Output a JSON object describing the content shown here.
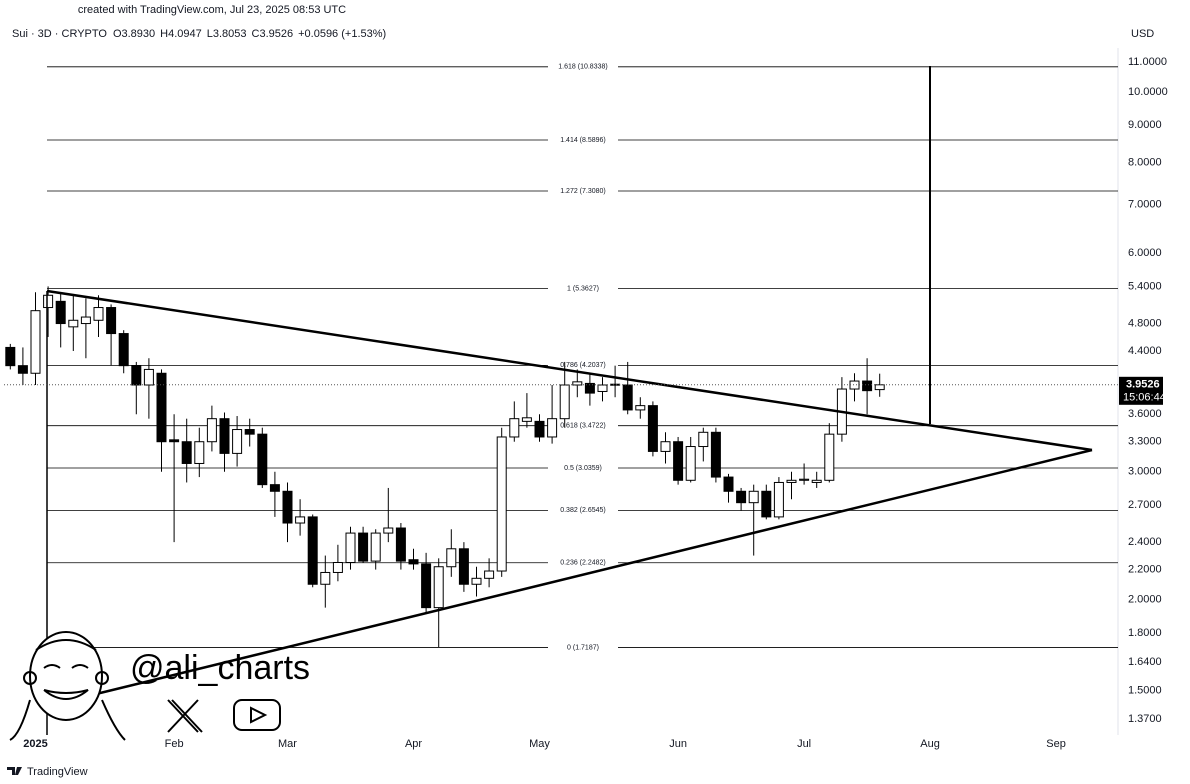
{
  "header": {
    "created": "created with TradingView.com, Jul 23, 2025 08:53 UTC",
    "symbol": "Sui · 3D · CRYPTO",
    "stats": [
      "O3.8930",
      "H4.0947",
      "L3.8053",
      "C3.9526",
      "+0.0596 (+1.53%)"
    ],
    "currency": "USD"
  },
  "watermark": {
    "handle": "@ali_charts"
  },
  "footer": {
    "brand": "TradingView"
  },
  "chart_data": {
    "type": "candlestick",
    "categories": [
      null,
      null,
      "2025",
      null,
      null,
      null,
      null,
      null,
      null,
      null,
      null,
      null,
      null,
      "Feb",
      null,
      null,
      null,
      null,
      null,
      null,
      null,
      null,
      "Mar",
      null,
      null,
      null,
      null,
      null,
      null,
      null,
      null,
      null,
      "Apr",
      null,
      null,
      null,
      null,
      null,
      null,
      null,
      null,
      null,
      "May",
      null,
      null,
      null,
      null,
      null,
      null,
      null,
      null,
      null,
      null,
      "Jun",
      null,
      null,
      null,
      null,
      null,
      null,
      null,
      null,
      null,
      "Jul",
      null,
      null,
      null,
      null,
      null,
      null,
      null,
      null,
      null,
      "Aug",
      null,
      null,
      null,
      null,
      null,
      null,
      null,
      null,
      null,
      "Sep",
      null,
      null,
      null,
      null
    ],
    "open": [
      4.45,
      4.2,
      4.1,
      5.05,
      5.15,
      4.75,
      4.8,
      4.85,
      5.05,
      4.65,
      4.2,
      3.95,
      4.1,
      3.32,
      3.3,
      3.08,
      3.3,
      3.55,
      3.18,
      3.43,
      3.38,
      2.88,
      2.82,
      2.55,
      2.6,
      2.1,
      2.18,
      2.25,
      2.47,
      2.26,
      2.47,
      2.51,
      2.27,
      2.24,
      1.95,
      2.22,
      2.35,
      2.1,
      2.14,
      2.19,
      3.35,
      3.52,
      3.52,
      3.35,
      3.55,
      3.95,
      3.97,
      3.87,
      3.95,
      3.95,
      3.65,
      3.7,
      3.2,
      3.3,
      2.92,
      3.25,
      3.4,
      2.95,
      2.82,
      2.72,
      2.82,
      2.6,
      2.9,
      2.92,
      2.9,
      2.92,
      3.38,
      3.9,
      4.0,
      3.893,
      null,
      null,
      null,
      null,
      null,
      null,
      null,
      null,
      null,
      null,
      null,
      null,
      null,
      null,
      null,
      null,
      null,
      null
    ],
    "high": [
      4.5,
      4.45,
      5.3,
      5.4,
      5.3,
      5.25,
      5.2,
      5.25,
      5.1,
      4.7,
      4.25,
      4.3,
      4.15,
      3.6,
      3.55,
      3.45,
      3.7,
      3.62,
      3.58,
      3.55,
      3.45,
      3.0,
      2.9,
      2.75,
      2.62,
      2.3,
      2.38,
      2.52,
      2.52,
      2.5,
      2.85,
      2.55,
      2.35,
      2.32,
      2.28,
      2.5,
      2.4,
      2.22,
      2.28,
      3.45,
      3.75,
      3.85,
      3.6,
      3.95,
      4.25,
      4.15,
      4.1,
      4.05,
      4.2,
      4.25,
      3.8,
      3.75,
      3.4,
      3.35,
      3.35,
      3.45,
      3.45,
      2.98,
      2.85,
      2.88,
      2.88,
      2.95,
      3.0,
      3.08,
      3.0,
      3.5,
      4.05,
      4.1,
      4.3,
      4.0947,
      null,
      null,
      null,
      null,
      null,
      null,
      null,
      null,
      null,
      null,
      null,
      null,
      null,
      null,
      null,
      null,
      null,
      null
    ],
    "low": [
      4.15,
      3.95,
      3.95,
      4.6,
      4.45,
      4.4,
      4.3,
      4.6,
      4.2,
      4.1,
      3.6,
      3.55,
      3.0,
      2.4,
      2.9,
      2.95,
      3.2,
      3.0,
      3.05,
      3.25,
      2.85,
      2.6,
      2.4,
      2.45,
      2.08,
      1.95,
      2.12,
      2.2,
      2.25,
      2.2,
      2.4,
      2.2,
      2.2,
      1.92,
      1.72,
      2.15,
      2.05,
      2.02,
      2.08,
      2.15,
      3.3,
      3.45,
      3.3,
      3.28,
      3.45,
      3.8,
      3.7,
      3.75,
      3.8,
      3.6,
      3.55,
      3.15,
      3.08,
      2.88,
      2.9,
      3.1,
      2.9,
      2.72,
      2.65,
      2.3,
      2.58,
      2.58,
      2.75,
      2.88,
      2.85,
      2.9,
      3.3,
      3.75,
      3.6,
      3.8053,
      null,
      null,
      null,
      null,
      null,
      null,
      null,
      null,
      null,
      null,
      null,
      null,
      null,
      null,
      null,
      null,
      null,
      null
    ],
    "close": [
      4.2,
      4.1,
      5.0,
      5.25,
      4.8,
      4.85,
      4.9,
      5.05,
      4.65,
      4.2,
      3.95,
      4.15,
      3.3,
      3.3,
      3.08,
      3.3,
      3.55,
      3.18,
      3.43,
      3.38,
      2.88,
      2.82,
      2.55,
      2.6,
      2.1,
      2.18,
      2.25,
      2.47,
      2.26,
      2.47,
      2.51,
      2.26,
      2.24,
      1.95,
      2.22,
      2.35,
      2.1,
      2.14,
      2.19,
      3.35,
      3.55,
      3.56,
      3.35,
      3.55,
      3.95,
      3.99,
      3.85,
      3.95,
      3.96,
      3.65,
      3.7,
      3.2,
      3.3,
      2.92,
      3.25,
      3.4,
      2.95,
      2.82,
      2.72,
      2.82,
      2.6,
      2.9,
      2.92,
      2.93,
      2.92,
      3.38,
      3.9,
      4.0,
      3.88,
      3.9526,
      null,
      null,
      null,
      null,
      null,
      null,
      null,
      null,
      null,
      null,
      null,
      null,
      null,
      null,
      null,
      null,
      null,
      null
    ],
    "up_color": "#ffffff",
    "down_color": "#000000",
    "wick_color": "#000000",
    "log_scale": true,
    "grid": false,
    "ylim": [
      1.3,
      11.5
    ],
    "yticks": [
      {
        "value": 11,
        "label": "11.0000"
      },
      {
        "value": 10,
        "label": "10.0000"
      },
      {
        "value": 9,
        "label": "9.0000"
      },
      {
        "value": 8,
        "label": "8.0000"
      },
      {
        "value": 7,
        "label": "7.0000"
      },
      {
        "value": 6,
        "label": "6.0000"
      },
      {
        "value": 5.4,
        "label": "5.4000"
      },
      {
        "value": 4.8,
        "label": "4.8000"
      },
      {
        "value": 4.4,
        "label": "4.4000"
      },
      {
        "value": 3.6,
        "label": "3.6000"
      },
      {
        "value": 3.3,
        "label": "3.3000"
      },
      {
        "value": 3,
        "label": "3.0000"
      },
      {
        "value": 2.7,
        "label": "2.7000"
      },
      {
        "value": 2.4,
        "label": "2.4000"
      },
      {
        "value": 2.2,
        "label": "2.2000"
      },
      {
        "value": 2,
        "label": "2.0000"
      },
      {
        "value": 1.8,
        "label": "1.8000"
      },
      {
        "value": 1.64,
        "label": "1.6400"
      },
      {
        "value": 1.5,
        "label": "1.5000"
      },
      {
        "value": 1.37,
        "label": "1.3700"
      }
    ],
    "fib_levels": [
      {
        "value": 10.8338,
        "label": "1.618 (10.8338)"
      },
      {
        "value": 8.5896,
        "label": "1.414 (8.5896)"
      },
      {
        "value": 7.308,
        "label": "1.272 (7.3080)"
      },
      {
        "value": 5.3627,
        "label": "1 (5.3627)"
      },
      {
        "value": 4.2037,
        "label": "0.786 (4.2037)"
      },
      {
        "value": 3.4722,
        "label": "0.618 (3.4722)"
      },
      {
        "value": 3.0359,
        "label": "0.5 (3.0359)"
      },
      {
        "value": 2.6545,
        "label": "0.382 (2.6545)"
      },
      {
        "value": 2.2482,
        "label": "0.236 (2.2482)"
      },
      {
        "value": 1.7187,
        "label": "0 (1.7187)"
      }
    ],
    "last_price": 3.9526,
    "countdown": "15:06:44"
  }
}
